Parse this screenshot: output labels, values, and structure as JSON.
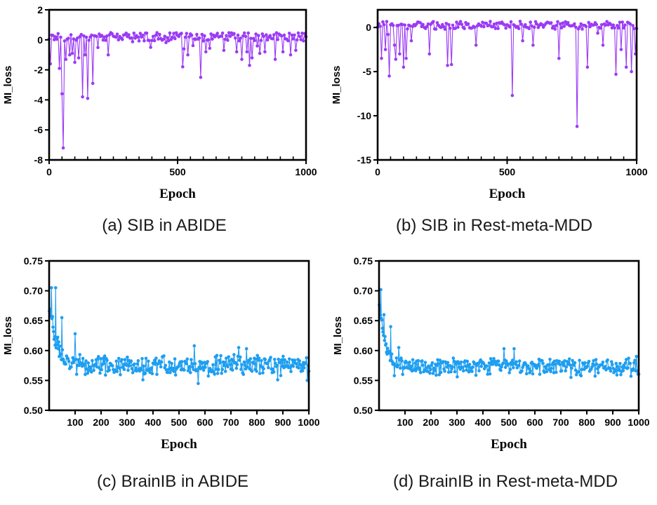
{
  "captions": [
    "(a) SIB in ABIDE",
    "(b) SIB in Rest-meta-MDD",
    "(c) BrainIB in ABIDE",
    "(d) BrainIB in Rest-meta-MDD"
  ],
  "chart_data": [
    {
      "type": "line",
      "title": "",
      "xlabel": "Epoch",
      "ylabel": "MI_loss",
      "xlim": [
        0,
        1000
      ],
      "ylim": [
        -8,
        2
      ],
      "xticks": [
        0,
        500,
        1000
      ],
      "yticks": [
        -8,
        -6,
        -4,
        -2,
        0,
        2
      ],
      "grid": false,
      "color": "#9b3bf5",
      "series": [
        {
          "baseline": 0.2,
          "noise": 0.28,
          "spikes": [
            [
              5,
              -1.6
            ],
            [
              40,
              -1.9
            ],
            [
              50,
              -3.6
            ],
            [
              55,
              -7.2
            ],
            [
              65,
              -1.3
            ],
            [
              80,
              -1.0
            ],
            [
              90,
              -0.9
            ],
            [
              100,
              -1.5
            ],
            [
              115,
              -1.2
            ],
            [
              130,
              -3.8
            ],
            [
              140,
              -1.0
            ],
            [
              150,
              -3.9
            ],
            [
              170,
              -2.9
            ],
            [
              230,
              -1.0
            ],
            [
              520,
              -1.8
            ],
            [
              540,
              -1.0
            ],
            [
              590,
              -2.5
            ],
            [
              610,
              -0.8
            ],
            [
              680,
              -0.7
            ],
            [
              730,
              -0.8
            ],
            [
              750,
              -1.3
            ],
            [
              770,
              -0.8
            ],
            [
              780,
              -1.7
            ],
            [
              790,
              -1.2
            ],
            [
              820,
              -0.9
            ],
            [
              840,
              -0.8
            ],
            [
              880,
              -1.3
            ],
            [
              910,
              -0.8
            ],
            [
              940,
              -1.0
            ],
            [
              960,
              -0.7
            ]
          ]
        }
      ]
    },
    {
      "type": "line",
      "title": "",
      "xlabel": "Epoch",
      "ylabel": "MI_loss",
      "xlim": [
        0,
        1000
      ],
      "ylim": [
        -15,
        2
      ],
      "xticks": [
        0,
        500,
        1000
      ],
      "yticks": [
        -15,
        -10,
        -5,
        0
      ],
      "grid": false,
      "color": "#9b3bf5",
      "series": [
        {
          "baseline": 0.25,
          "noise": 0.45,
          "spikes": [
            [
              15,
              -3.5
            ],
            [
              30,
              -2.5
            ],
            [
              45,
              -5.5
            ],
            [
              65,
              -2.0
            ],
            [
              70,
              -3.6
            ],
            [
              85,
              -3.0
            ],
            [
              100,
              -4.5
            ],
            [
              110,
              -3.5
            ],
            [
              130,
              -1.5
            ],
            [
              200,
              -3.0
            ],
            [
              270,
              -4.3
            ],
            [
              285,
              -4.2
            ],
            [
              380,
              -2.0
            ],
            [
              520,
              -7.7
            ],
            [
              560,
              -1.5
            ],
            [
              600,
              -2.0
            ],
            [
              700,
              -3.5
            ],
            [
              770,
              -11.2
            ],
            [
              810,
              -4.5
            ],
            [
              870,
              -2.0
            ],
            [
              920,
              -5.3
            ],
            [
              940,
              -2.5
            ],
            [
              960,
              -4.5
            ],
            [
              980,
              -5.0
            ],
            [
              995,
              -3.0
            ]
          ]
        }
      ]
    },
    {
      "type": "line",
      "title": "",
      "xlabel": "Epoch",
      "ylabel": "MI_loss",
      "xlim": [
        0,
        1000
      ],
      "ylim": [
        0.5,
        0.75
      ],
      "xticks": [
        100,
        200,
        300,
        400,
        500,
        600,
        700,
        800,
        900,
        1000
      ],
      "yticks": [
        0.5,
        0.55,
        0.6,
        0.65,
        0.7,
        0.75
      ],
      "grid": false,
      "color": "#1e9ef0",
      "series": [
        {
          "start": 0.68,
          "plateau": 0.575,
          "decay": 30,
          "noise": 0.013,
          "peaks": [
            [
              10,
              0.705
            ],
            [
              25,
              0.705
            ],
            [
              50,
              0.655
            ],
            [
              100,
              0.628
            ],
            [
              560,
              0.608
            ],
            [
              730,
              0.605
            ],
            [
              760,
              0.603
            ]
          ],
          "dips": [
            [
              40,
              0.59
            ],
            [
              360,
              0.551
            ],
            [
              575,
              0.545
            ],
            [
              880,
              0.551
            ],
            [
              995,
              0.55
            ]
          ]
        }
      ]
    },
    {
      "type": "line",
      "title": "",
      "xlabel": "Epoch",
      "ylabel": "MI_loss",
      "xlim": [
        0,
        1000
      ],
      "ylim": [
        0.5,
        0.75
      ],
      "xticks": [
        100,
        200,
        300,
        400,
        500,
        600,
        700,
        800,
        900,
        1000
      ],
      "yticks": [
        0.5,
        0.55,
        0.6,
        0.65,
        0.7,
        0.75
      ],
      "grid": false,
      "color": "#1e9ef0",
      "series": [
        {
          "start": 0.68,
          "plateau": 0.573,
          "decay": 25,
          "noise": 0.011,
          "peaks": [
            [
              8,
              0.702
            ],
            [
              20,
              0.66
            ],
            [
              45,
              0.64
            ],
            [
              75,
              0.605
            ],
            [
              480,
              0.603
            ],
            [
              520,
              0.603
            ],
            [
              990,
              0.59
            ]
          ],
          "dips": [
            [
              60,
              0.558
            ],
            [
              300,
              0.556
            ],
            [
              740,
              0.555
            ],
            [
              970,
              0.557
            ]
          ]
        }
      ]
    }
  ]
}
